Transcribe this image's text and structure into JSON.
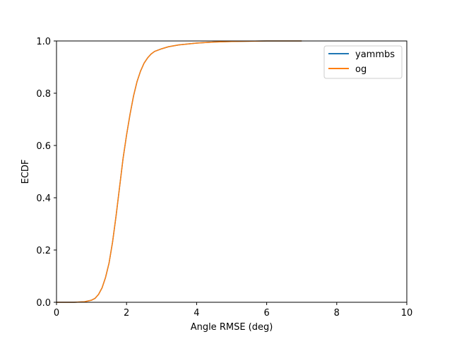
{
  "chart_data": {
    "type": "line",
    "title": "",
    "xlabel": "Angle RMSE (deg)",
    "ylabel": "ECDF",
    "xlim": [
      0,
      10
    ],
    "ylim": [
      0,
      1
    ],
    "xticks": [
      0,
      2,
      4,
      6,
      8,
      10
    ],
    "yticks": [
      0.0,
      0.2,
      0.4,
      0.6,
      0.8,
      1.0
    ],
    "xtick_labels": [
      "0",
      "2",
      "4",
      "6",
      "8",
      "10"
    ],
    "ytick_labels": [
      "0.0",
      "0.2",
      "0.4",
      "0.6",
      "0.8",
      "1.0"
    ],
    "grid": false,
    "legend_position": "top-right",
    "series": [
      {
        "name": "yammbs",
        "color": "#1f77b4",
        "x": [
          0,
          0.5,
          0.8,
          1.0,
          1.1,
          1.2,
          1.3,
          1.4,
          1.5,
          1.6,
          1.7,
          1.8,
          1.9,
          2.0,
          2.1,
          2.2,
          2.3,
          2.4,
          2.5,
          2.6,
          2.7,
          2.8,
          3.0,
          3.2,
          3.5,
          4.0,
          4.5,
          5.0,
          6.0,
          7.0
        ],
        "y": [
          0,
          0.0,
          0.002,
          0.008,
          0.015,
          0.03,
          0.055,
          0.095,
          0.15,
          0.23,
          0.33,
          0.44,
          0.55,
          0.64,
          0.72,
          0.79,
          0.845,
          0.885,
          0.915,
          0.935,
          0.95,
          0.96,
          0.97,
          0.978,
          0.985,
          0.992,
          0.996,
          0.998,
          1.0,
          1.0
        ]
      },
      {
        "name": "og",
        "color": "#ff7f0e",
        "x": [
          0,
          0.5,
          0.8,
          1.0,
          1.1,
          1.2,
          1.3,
          1.4,
          1.5,
          1.6,
          1.7,
          1.8,
          1.9,
          2.0,
          2.1,
          2.2,
          2.3,
          2.4,
          2.5,
          2.6,
          2.7,
          2.8,
          3.0,
          3.2,
          3.5,
          4.0,
          4.5,
          5.0,
          6.0,
          7.0
        ],
        "y": [
          0,
          0.0,
          0.002,
          0.008,
          0.015,
          0.03,
          0.055,
          0.095,
          0.15,
          0.23,
          0.33,
          0.44,
          0.55,
          0.64,
          0.72,
          0.79,
          0.845,
          0.885,
          0.915,
          0.935,
          0.95,
          0.96,
          0.97,
          0.978,
          0.985,
          0.992,
          0.996,
          0.998,
          1.0,
          1.0
        ]
      }
    ]
  }
}
